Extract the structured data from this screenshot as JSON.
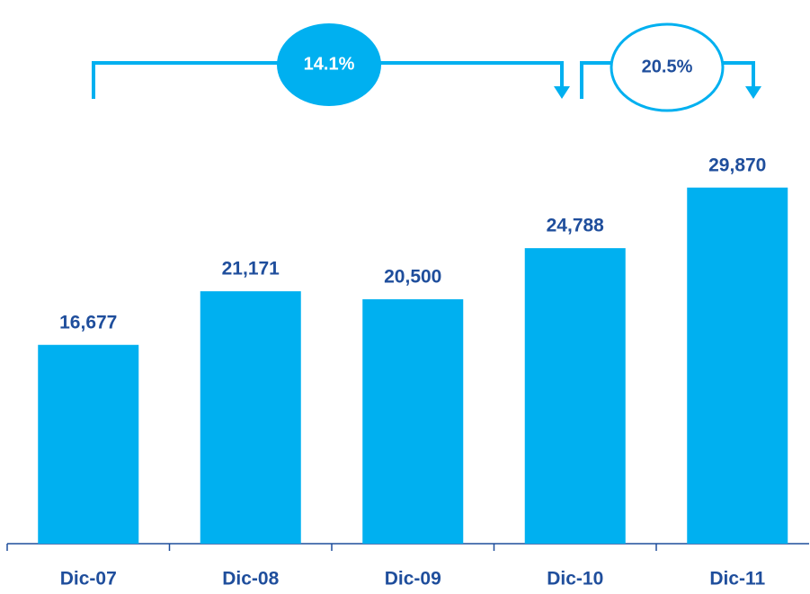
{
  "chart_data": {
    "type": "bar",
    "categories": [
      "Dic-07",
      "Dic-08",
      "Dic-09",
      "Dic-10",
      "Dic-11"
    ],
    "values": [
      16677,
      21171,
      20500,
      24788,
      29870
    ],
    "value_labels": [
      "16,677",
      "21,171",
      "20,500",
      "24,788",
      "29,870"
    ],
    "color": "#00b0f0",
    "ylim": [
      0,
      30000
    ],
    "annotations": [
      "14.1%",
      "20.5%"
    ]
  }
}
